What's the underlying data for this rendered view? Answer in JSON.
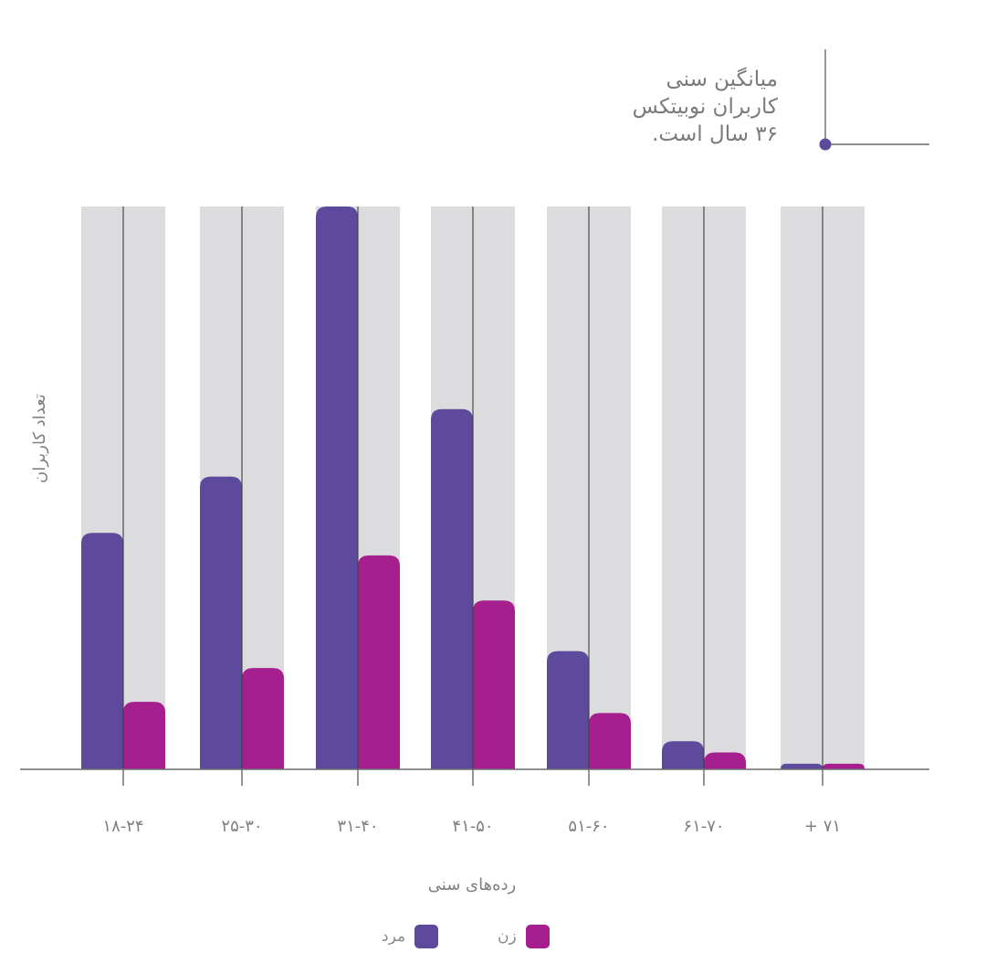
{
  "annotation": {
    "line1": "میانگین سنی",
    "line2": "کاربران نوبیتکس",
    "line3": "۳۶ سال است."
  },
  "chart_data": {
    "type": "bar",
    "title": "",
    "xlabel": "رده‌های سنی",
    "ylabel": "تعداد کاربران",
    "categories": [
      "۱۸-۲۴",
      "۲۵-۳۰",
      "۳۱-۴۰",
      "۴۱-۵۰",
      "۵۱-۶۰",
      "۶۱-۷۰",
      "+ ۷۱"
    ],
    "series": [
      {
        "name": "مرد",
        "values": [
          42,
          52,
          100,
          64,
          21,
          5,
          1
        ]
      },
      {
        "name": "زن",
        "values": [
          12,
          18,
          38,
          30,
          10,
          3,
          1
        ]
      }
    ],
    "ylim": [
      0,
      100
    ],
    "grid": false,
    "legend": "bottom-center",
    "colors": {
      "male": "#5d4a9c",
      "female": "#a61f8f",
      "background": "#dcdcde",
      "axis": "#6d6d6d",
      "text": "#7f7f7f"
    }
  }
}
